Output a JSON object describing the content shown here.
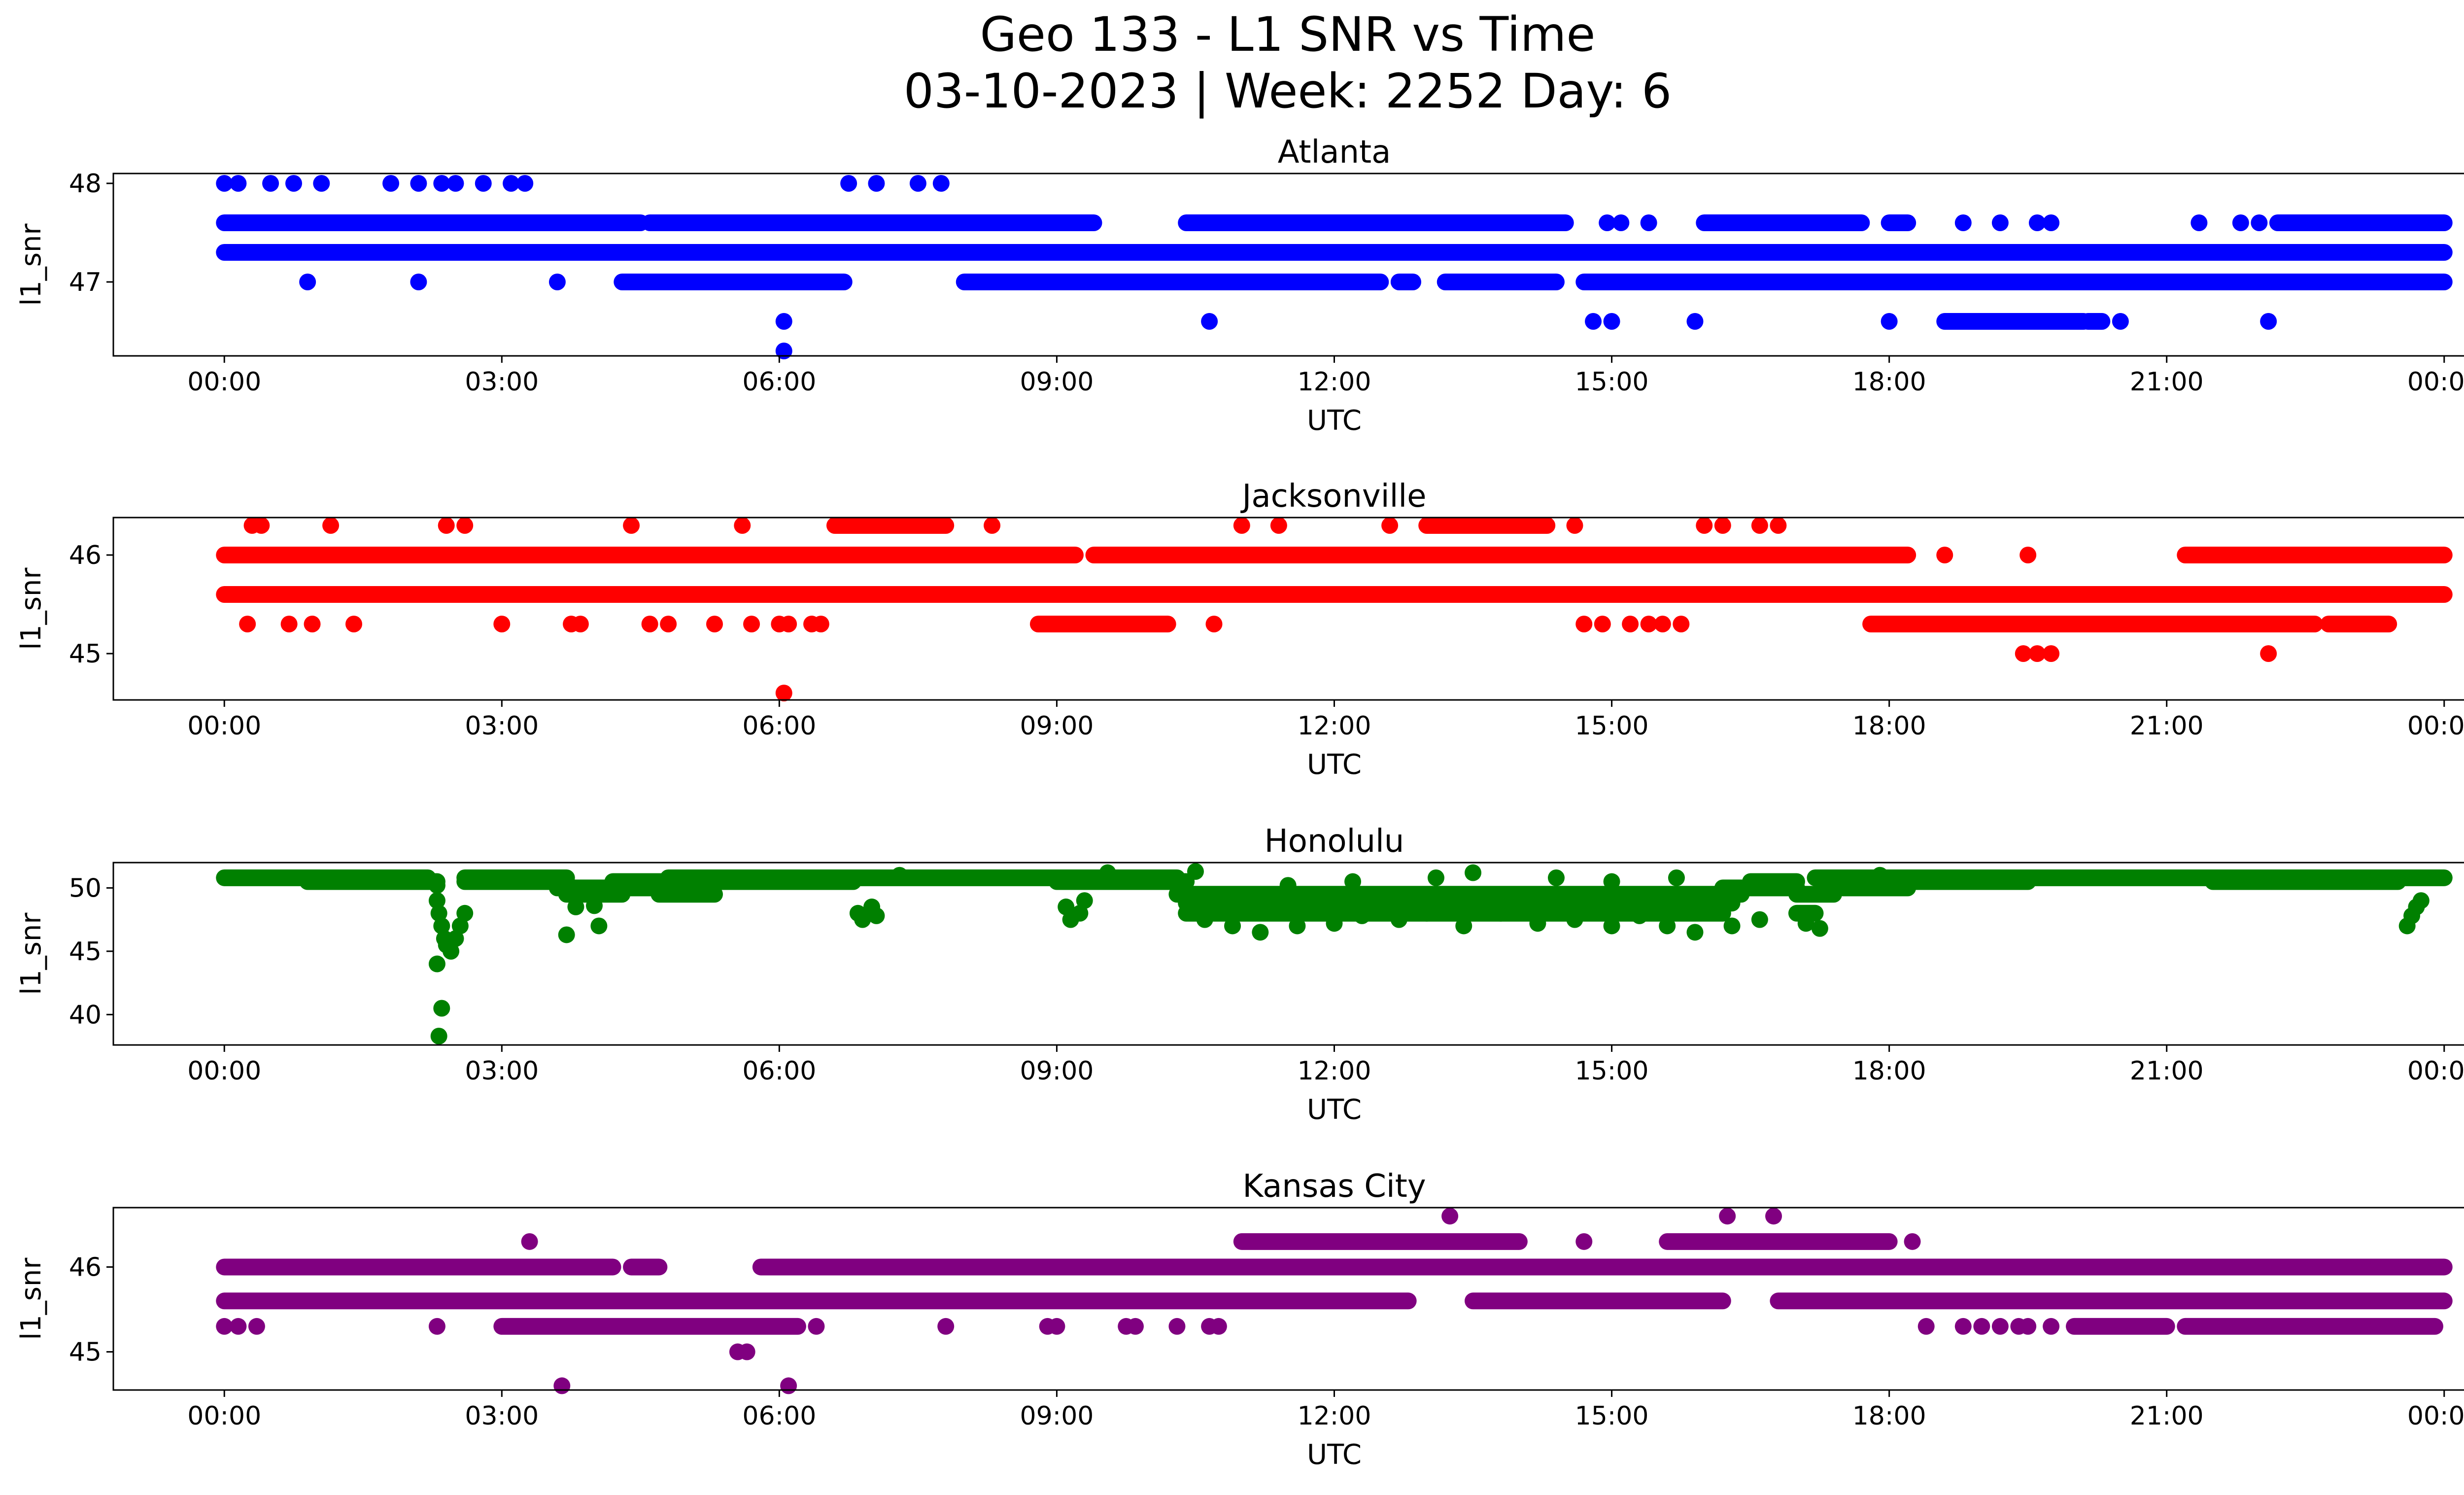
{
  "figure": {
    "title_line1": "Geo 133 - L1 SNR vs Time",
    "title_line2": "03-10-2023 | Week: 2252 Day: 6"
  },
  "chart_data": [
    {
      "type": "scatter",
      "title": "Atlanta",
      "xlabel": "UTC",
      "ylabel": "l1_snr",
      "color": "#0000ff",
      "x_ticks": [
        "00:00",
        "03:00",
        "06:00",
        "09:00",
        "12:00",
        "15:00",
        "18:00",
        "21:00",
        "00:00"
      ],
      "xlim_hours": [
        -1.2,
        25.2
      ],
      "ylim": [
        46.25,
        48.1
      ],
      "y_ticks": [
        47,
        48
      ],
      "bands": [
        {
          "y": 47.3,
          "x": [
            [
              0.0,
              24.0
            ]
          ]
        },
        {
          "y": 47.6,
          "x": [
            [
              0.0,
              4.5
            ],
            [
              4.6,
              9.4
            ],
            [
              10.4,
              14.5
            ],
            [
              16.0,
              17.7
            ],
            [
              18.0,
              18.2
            ],
            [
              22.2,
              24.0
            ]
          ]
        },
        {
          "y": 47.0,
          "x": [
            [
              4.3,
              6.7
            ],
            [
              8.0,
              12.5
            ],
            [
              12.7,
              12.85
            ],
            [
              13.2,
              14.4
            ],
            [
              14.7,
              24.0
            ]
          ]
        },
        {
          "y": 46.6,
          "x": [
            [
              18.6,
              20.1
            ],
            [
              20.15,
              20.3
            ]
          ]
        }
      ],
      "points": [
        [
          0.0,
          48.0
        ],
        [
          0.15,
          48.0
        ],
        [
          0.5,
          48.0
        ],
        [
          0.75,
          48.0
        ],
        [
          1.05,
          48.0
        ],
        [
          1.8,
          48.0
        ],
        [
          2.1,
          48.0
        ],
        [
          2.35,
          48.0
        ],
        [
          2.5,
          48.0
        ],
        [
          2.8,
          48.0
        ],
        [
          3.1,
          48.0
        ],
        [
          3.25,
          48.0
        ],
        [
          6.75,
          48.0
        ],
        [
          7.05,
          48.0
        ],
        [
          7.5,
          48.0
        ],
        [
          7.75,
          48.0
        ],
        [
          0.9,
          47.0
        ],
        [
          2.1,
          47.0
        ],
        [
          3.6,
          47.0
        ],
        [
          6.05,
          46.6
        ],
        [
          6.05,
          46.3
        ],
        [
          10.65,
          46.6
        ],
        [
          14.8,
          46.6
        ],
        [
          15.0,
          46.6
        ],
        [
          15.9,
          46.6
        ],
        [
          18.0,
          46.6
        ],
        [
          20.5,
          46.6
        ],
        [
          22.1,
          46.6
        ],
        [
          14.95,
          47.6
        ],
        [
          15.1,
          47.6
        ],
        [
          15.4,
          47.6
        ],
        [
          18.8,
          47.6
        ],
        [
          19.2,
          47.6
        ],
        [
          19.6,
          47.6
        ],
        [
          19.75,
          47.6
        ],
        [
          21.35,
          47.6
        ],
        [
          21.8,
          47.6
        ],
        [
          22.0,
          47.6
        ]
      ]
    },
    {
      "type": "scatter",
      "title": "Jacksonville",
      "xlabel": "UTC",
      "ylabel": "l1_snr",
      "color": "#ff0000",
      "x_ticks": [
        "00:00",
        "03:00",
        "06:00",
        "09:00",
        "12:00",
        "15:00",
        "18:00",
        "21:00",
        "00:00"
      ],
      "xlim_hours": [
        -1.2,
        25.2
      ],
      "ylim": [
        44.53,
        46.38
      ],
      "y_ticks": [
        45,
        46
      ],
      "bands": [
        {
          "y": 45.6,
          "x": [
            [
              0.0,
              24.0
            ]
          ]
        },
        {
          "y": 46.0,
          "x": [
            [
              0.0,
              9.2
            ],
            [
              9.4,
              18.2
            ],
            [
              21.2,
              24.0
            ]
          ]
        },
        {
          "y": 46.3,
          "x": [
            [
              6.6,
              7.8
            ],
            [
              13.0,
              14.3
            ]
          ]
        },
        {
          "y": 45.3,
          "x": [
            [
              8.8,
              10.2
            ],
            [
              17.8,
              22.6
            ],
            [
              22.75,
              23.4
            ]
          ]
        }
      ],
      "points": [
        [
          0.3,
          46.3
        ],
        [
          0.4,
          46.3
        ],
        [
          1.15,
          46.3
        ],
        [
          2.4,
          46.3
        ],
        [
          2.6,
          46.3
        ],
        [
          4.4,
          46.3
        ],
        [
          5.6,
          46.3
        ],
        [
          8.3,
          46.3
        ],
        [
          11.0,
          46.3
        ],
        [
          11.4,
          46.3
        ],
        [
          12.6,
          46.3
        ],
        [
          14.6,
          46.3
        ],
        [
          16.0,
          46.3
        ],
        [
          16.2,
          46.3
        ],
        [
          16.6,
          46.3
        ],
        [
          16.8,
          46.3
        ],
        [
          18.6,
          46.0
        ],
        [
          19.5,
          46.0
        ],
        [
          0.25,
          45.3
        ],
        [
          0.7,
          45.3
        ],
        [
          0.95,
          45.3
        ],
        [
          1.4,
          45.3
        ],
        [
          3.0,
          45.3
        ],
        [
          3.75,
          45.3
        ],
        [
          3.85,
          45.3
        ],
        [
          4.6,
          45.3
        ],
        [
          4.8,
          45.3
        ],
        [
          5.3,
          45.3
        ],
        [
          5.7,
          45.3
        ],
        [
          6.0,
          45.3
        ],
        [
          6.1,
          45.3
        ],
        [
          6.35,
          45.3
        ],
        [
          6.45,
          45.3
        ],
        [
          10.7,
          45.3
        ],
        [
          14.7,
          45.3
        ],
        [
          14.9,
          45.3
        ],
        [
          15.2,
          45.3
        ],
        [
          15.4,
          45.3
        ],
        [
          15.55,
          45.3
        ],
        [
          15.75,
          45.3
        ],
        [
          19.45,
          45.0
        ],
        [
          19.6,
          45.0
        ],
        [
          19.75,
          45.0
        ],
        [
          22.1,
          45.0
        ],
        [
          6.05,
          44.6
        ]
      ]
    },
    {
      "type": "scatter",
      "title": "Honolulu",
      "xlabel": "UTC",
      "ylabel": "l1_snr",
      "color": "#008000",
      "x_ticks": [
        "00:00",
        "03:00",
        "06:00",
        "09:00",
        "12:00",
        "15:00",
        "18:00",
        "21:00",
        "00:00"
      ],
      "xlim_hours": [
        -1.2,
        25.2
      ],
      "ylim": [
        37.6,
        52.0
      ],
      "y_ticks": [
        40,
        45,
        50
      ],
      "bands": [
        {
          "y": 50.8,
          "x": [
            [
              0.0,
              2.2
            ],
            [
              2.6,
              3.7
            ],
            [
              4.8,
              10.3
            ],
            [
              17.2,
              24.0
            ]
          ]
        },
        {
          "y": 50.5,
          "x": [
            [
              0.9,
              2.3
            ],
            [
              2.6,
              3.6
            ],
            [
              4.2,
              6.8
            ],
            [
              9.0,
              10.4
            ],
            [
              16.5,
              17.0
            ],
            [
              18.2,
              19.5
            ],
            [
              21.5,
              23.5
            ]
          ]
        },
        {
          "y": 50.0,
          "x": [
            [
              3.6,
              4.8
            ],
            [
              16.2,
              17.0
            ],
            [
              17.5,
              18.2
            ]
          ]
        },
        {
          "y": 49.5,
          "x": [
            [
              3.7,
              4.3
            ],
            [
              4.7,
              5.3
            ],
            [
              10.3,
              16.4
            ],
            [
              17.0,
              17.4
            ]
          ]
        },
        {
          "y": 48.8,
          "x": [
            [
              10.4,
              16.3
            ]
          ]
        },
        {
          "y": 48.0,
          "x": [
            [
              10.4,
              16.2
            ],
            [
              17.0,
              17.2
            ]
          ]
        }
      ],
      "points": [
        [
          2.3,
          50.2
        ],
        [
          2.3,
          49.0
        ],
        [
          2.32,
          48.0
        ],
        [
          2.35,
          47.0
        ],
        [
          2.38,
          46.0
        ],
        [
          2.4,
          45.5
        ],
        [
          2.45,
          45.0
        ],
        [
          2.5,
          46.0
        ],
        [
          2.55,
          47.0
        ],
        [
          2.3,
          44.0
        ],
        [
          2.35,
          40.5
        ],
        [
          2.32,
          38.3
        ],
        [
          2.6,
          48.0
        ],
        [
          3.7,
          46.3
        ],
        [
          3.8,
          48.5
        ],
        [
          4.0,
          48.6
        ],
        [
          4.05,
          47.0
        ],
        [
          6.85,
          48.0
        ],
        [
          6.9,
          47.5
        ],
        [
          7.0,
          48.5
        ],
        [
          7.05,
          47.8
        ],
        [
          9.1,
          48.5
        ],
        [
          9.15,
          47.5
        ],
        [
          9.25,
          48.0
        ],
        [
          9.3,
          49.0
        ],
        [
          10.6,
          47.5
        ],
        [
          10.9,
          47.0
        ],
        [
          11.2,
          46.5
        ],
        [
          11.6,
          47.0
        ],
        [
          12.0,
          47.2
        ],
        [
          12.3,
          47.8
        ],
        [
          12.7,
          47.5
        ],
        [
          13.0,
          48.0
        ],
        [
          13.4,
          47.0
        ],
        [
          13.8,
          48.0
        ],
        [
          14.2,
          47.2
        ],
        [
          14.6,
          47.5
        ],
        [
          15.0,
          47.0
        ],
        [
          15.3,
          47.8
        ],
        [
          15.6,
          47.0
        ],
        [
          15.9,
          46.5
        ],
        [
          16.3,
          47.0
        ],
        [
          16.6,
          47.5
        ],
        [
          17.1,
          47.2
        ],
        [
          17.25,
          46.8
        ],
        [
          11.5,
          50.2
        ],
        [
          12.2,
          50.5
        ],
        [
          13.1,
          50.8
        ],
        [
          13.5,
          51.2
        ],
        [
          14.4,
          50.8
        ],
        [
          15.0,
          50.5
        ],
        [
          15.7,
          50.8
        ],
        [
          23.6,
          47.0
        ],
        [
          23.65,
          47.8
        ],
        [
          23.7,
          48.5
        ],
        [
          23.75,
          49.0
        ],
        [
          9.55,
          51.2
        ],
        [
          10.5,
          51.3
        ],
        [
          7.3,
          51.0
        ],
        [
          17.9,
          51.0
        ]
      ]
    },
    {
      "type": "scatter",
      "title": "Kansas City",
      "xlabel": "UTC",
      "ylabel": "l1_snr",
      "color": "#800080",
      "x_ticks": [
        "00:00",
        "03:00",
        "06:00",
        "09:00",
        "12:00",
        "15:00",
        "18:00",
        "21:00",
        "00:00"
      ],
      "xlim_hours": [
        -1.2,
        25.2
      ],
      "ylim": [
        44.55,
        46.7
      ],
      "y_ticks": [
        45,
        46
      ],
      "bands": [
        {
          "y": 45.6,
          "x": [
            [
              0.0,
              12.8
            ],
            [
              13.5,
              16.2
            ],
            [
              16.8,
              24.0
            ]
          ]
        },
        {
          "y": 46.0,
          "x": [
            [
              0.0,
              4.2
            ],
            [
              4.4,
              4.7
            ],
            [
              5.8,
              24.0
            ]
          ]
        },
        {
          "y": 46.3,
          "x": [
            [
              11.0,
              14.0
            ],
            [
              15.6,
              18.0
            ]
          ]
        },
        {
          "y": 45.3,
          "x": [
            [
              3.0,
              6.2
            ],
            [
              20.0,
              21.0
            ],
            [
              21.2,
              23.9
            ]
          ]
        }
      ],
      "points": [
        [
          0.0,
          45.3
        ],
        [
          0.15,
          45.3
        ],
        [
          0.35,
          45.3
        ],
        [
          2.3,
          45.3
        ],
        [
          6.4,
          45.3
        ],
        [
          7.8,
          45.3
        ],
        [
          8.9,
          45.3
        ],
        [
          9.0,
          45.3
        ],
        [
          9.75,
          45.3
        ],
        [
          9.85,
          45.3
        ],
        [
          10.3,
          45.3
        ],
        [
          10.65,
          45.3
        ],
        [
          10.75,
          45.3
        ],
        [
          18.4,
          45.3
        ],
        [
          18.8,
          45.3
        ],
        [
          19.0,
          45.3
        ],
        [
          19.2,
          45.3
        ],
        [
          19.4,
          45.3
        ],
        [
          19.5,
          45.3
        ],
        [
          19.75,
          45.3
        ],
        [
          3.3,
          46.3
        ],
        [
          14.7,
          46.3
        ],
        [
          18.25,
          46.3
        ],
        [
          13.25,
          46.6
        ],
        [
          16.25,
          46.6
        ],
        [
          16.75,
          46.6
        ],
        [
          5.55,
          45.0
        ],
        [
          5.65,
          45.0
        ],
        [
          3.65,
          44.6
        ],
        [
          6.1,
          44.6
        ]
      ]
    }
  ]
}
